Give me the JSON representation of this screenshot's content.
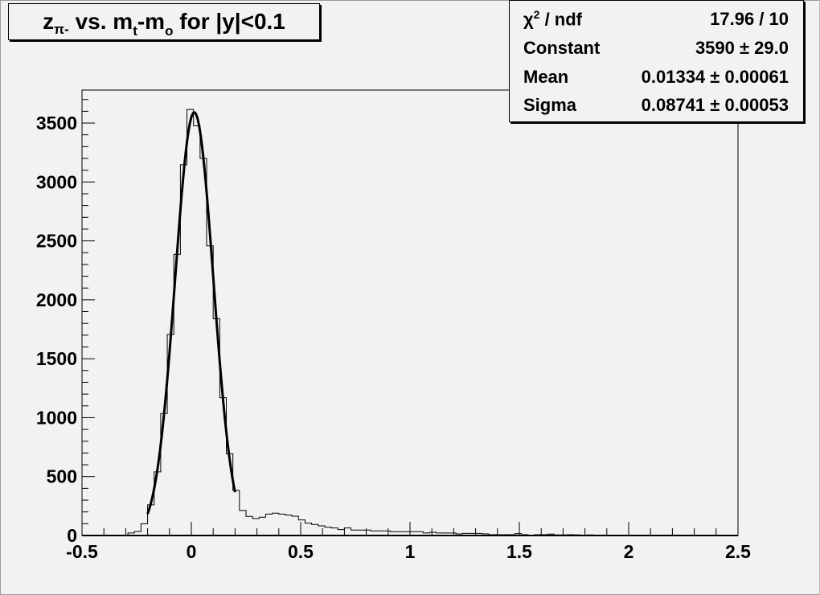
{
  "title": {
    "parts": [
      "z",
      "π-",
      " vs. m",
      "t",
      "-m",
      "o",
      " for |y|<0.1"
    ]
  },
  "stats": {
    "rows": [
      {
        "label_base": "χ",
        "label_sup": "2",
        "label_rest": " / ndf",
        "value": "17.96 / 10"
      },
      {
        "label": "Constant",
        "value": "3590 ± 29.0"
      },
      {
        "label": "Mean",
        "value": "0.01334 ± 0.00061"
      },
      {
        "label": "Sigma",
        "value": "0.08741 ± 0.00053"
      }
    ]
  },
  "chart_data": {
    "type": "histogram",
    "title": "z_π- vs. m_t-m_o for |y|<0.1",
    "xlabel": "",
    "ylabel": "",
    "xlim": [
      -0.5,
      2.5
    ],
    "ylim": [
      0,
      3780
    ],
    "bin_width": 0.03,
    "x_ticks": [
      "-0.5",
      "0",
      "0.5",
      "1",
      "1.5",
      "2",
      "2.5"
    ],
    "y_ticks": [
      "0",
      "500",
      "1000",
      "1500",
      "2000",
      "2500",
      "3000",
      "3500"
    ],
    "grid": false,
    "values": [
      0,
      0,
      0,
      0,
      0,
      0,
      0,
      21,
      34,
      100,
      260,
      540,
      1035,
      1706,
      2386,
      3146,
      3615,
      3476,
      3200,
      2458,
      1840,
      1169,
      693,
      383,
      212,
      162,
      144,
      155,
      182,
      189,
      182,
      173,
      164,
      132,
      105,
      94,
      82,
      71,
      64,
      50,
      64,
      46,
      46,
      46,
      39,
      39,
      39,
      32,
      32,
      32,
      32,
      32,
      21,
      27,
      21,
      21,
      21,
      14,
      18,
      18,
      18,
      14,
      7,
      7,
      7,
      7,
      16,
      7,
      3,
      7,
      7,
      12,
      5,
      5,
      7,
      5,
      3,
      5,
      3,
      3,
      0,
      0,
      0,
      0,
      0,
      0,
      0,
      0,
      0,
      0,
      0,
      0,
      0,
      0,
      0,
      0,
      0,
      0,
      0,
      0
    ],
    "fit": {
      "function": "gaus",
      "constant": 3590,
      "mean": 0.01334,
      "sigma": 0.08741,
      "range": [
        -0.2,
        0.2
      ]
    },
    "colors": {
      "histogram": "#000000",
      "fit": "#000000",
      "background": "#f2f2f2"
    }
  }
}
